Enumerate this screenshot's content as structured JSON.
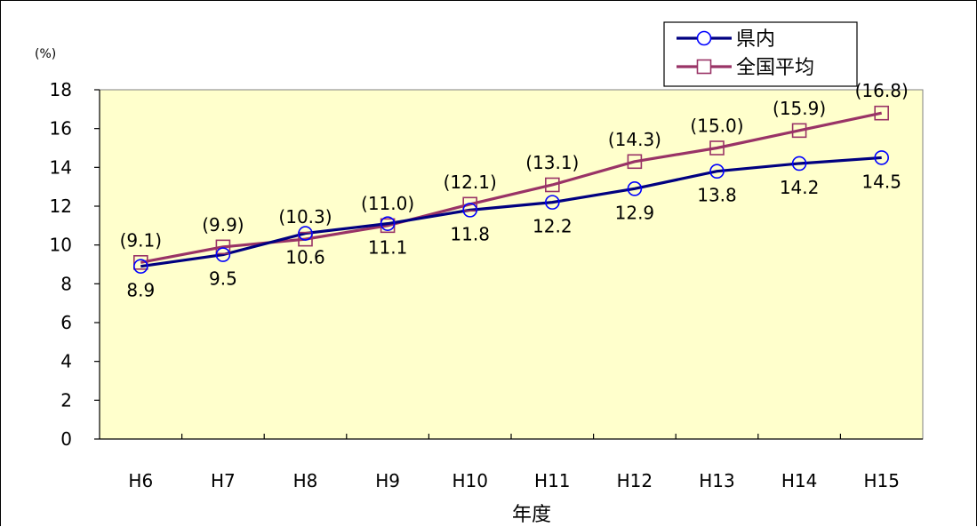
{
  "chart_data": {
    "type": "line",
    "title": "",
    "xlabel": "年度",
    "ylabel": "(%)",
    "categories": [
      "H6",
      "H7",
      "H8",
      "H9",
      "H10",
      "H11",
      "H12",
      "H13",
      "H14",
      "H15"
    ],
    "ylim": [
      0,
      18
    ],
    "yticks": [
      "0",
      "2",
      "4",
      "6",
      "8",
      "10",
      "12",
      "14",
      "16",
      "18"
    ],
    "grid": false,
    "legend_position": "top-right",
    "plot_background": "#FFFFCC",
    "series": [
      {
        "name": "県内",
        "values": [
          8.9,
          9.5,
          10.6,
          11.1,
          11.8,
          12.2,
          12.9,
          13.8,
          14.2,
          14.5
        ],
        "labels": [
          "8.9",
          "9.5",
          "10.6",
          "11.1",
          "11.8",
          "12.2",
          "12.9",
          "13.8",
          "14.2",
          "14.5"
        ],
        "color": "#000080",
        "marker": "circle",
        "marker_color": "#0000FF",
        "label_position": "below"
      },
      {
        "name": "全国平均",
        "values": [
          9.1,
          9.9,
          10.3,
          11.0,
          12.1,
          13.1,
          14.3,
          15.0,
          15.9,
          16.8
        ],
        "labels": [
          "(9.1)",
          "(9.9)",
          "(10.3)",
          "(11.0)",
          "(12.1)",
          "(13.1)",
          "(14.3)",
          "(15.0)",
          "(15.9)",
          "(16.8)"
        ],
        "color": "#993366",
        "marker": "square",
        "marker_color": "#993366",
        "label_position": "above"
      }
    ]
  }
}
